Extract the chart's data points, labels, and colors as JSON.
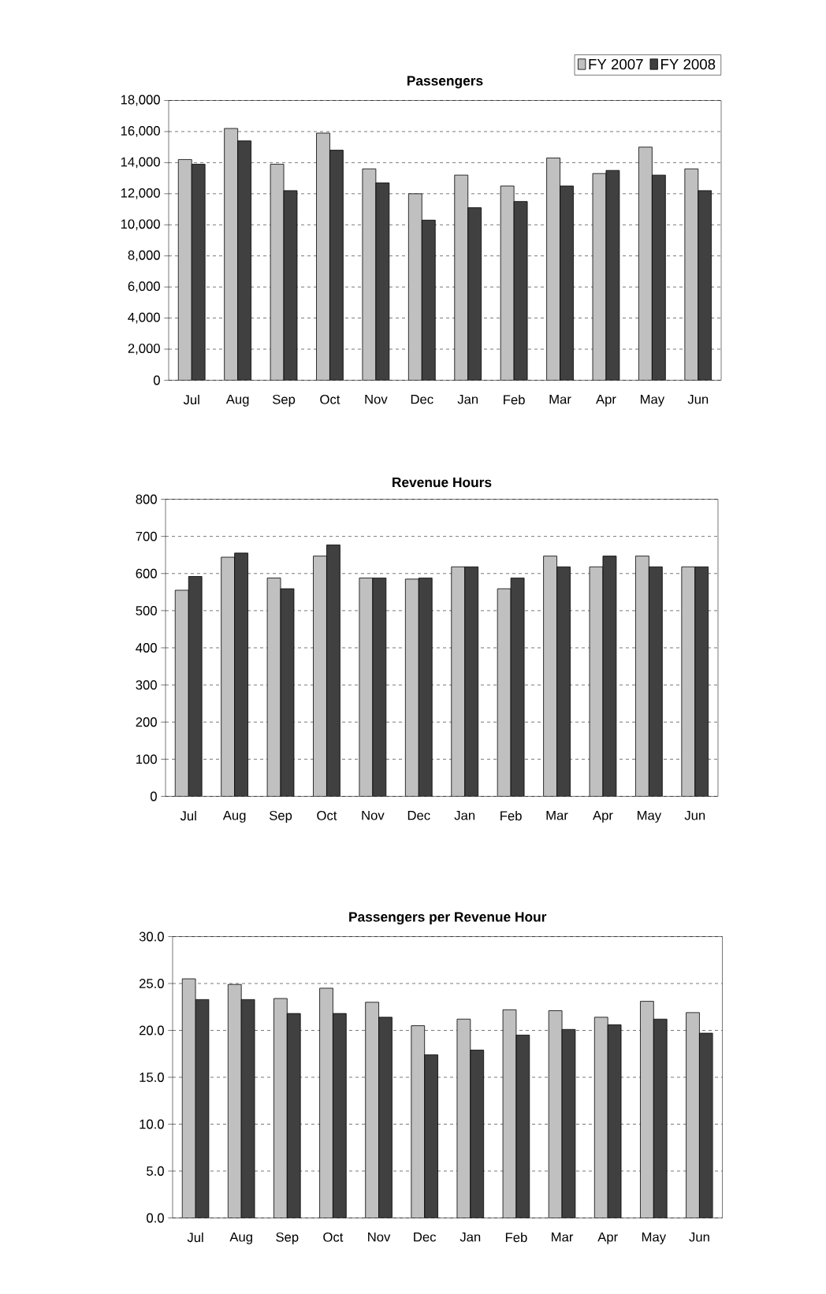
{
  "chart_data": [
    {
      "type": "bar",
      "title": "Passengers",
      "categories": [
        "Jul",
        "Aug",
        "Sep",
        "Oct",
        "Nov",
        "Dec",
        "Jan",
        "Feb",
        "Mar",
        "Apr",
        "May",
        "Jun"
      ],
      "series": [
        {
          "name": "FY 2007",
          "color": "#c0c0c0",
          "values": [
            14200,
            16200,
            13900,
            15900,
            13600,
            12000,
            13200,
            12500,
            14300,
            13300,
            15000,
            13600
          ]
        },
        {
          "name": "FY 2008",
          "color": "#404040",
          "values": [
            13900,
            15400,
            12200,
            14800,
            12700,
            10300,
            11100,
            11500,
            12500,
            13500,
            13200,
            12200
          ]
        }
      ],
      "ylim": [
        0,
        18000
      ],
      "yticks": [
        0,
        {
          "value": 2000,
          "label": "2,000"
        },
        {
          "value": 4000,
          "label": "4,000"
        },
        {
          "value": 6000,
          "label": "6,000"
        },
        {
          "value": 8000,
          "label": "8,000"
        },
        {
          "value": 10000,
          "label": "10,000"
        },
        {
          "value": 12000,
          "label": "12,000"
        },
        {
          "value": 14000,
          "label": "14,000"
        },
        {
          "value": 16000,
          "label": "16,000"
        },
        {
          "value": 18000,
          "label": "18,000"
        }
      ],
      "grid": "y",
      "legend": "top right"
    },
    {
      "type": "bar",
      "title": "Revenue Hours",
      "categories": [
        "Jul",
        "Aug",
        "Sep",
        "Oct",
        "Nov",
        "Dec",
        "Jan",
        "Feb",
        "Mar",
        "Apr",
        "May",
        "Jun"
      ],
      "series": [
        {
          "color": "#c0c0c0",
          "values": [
            555,
            644,
            588,
            647,
            588,
            585,
            618,
            559,
            647,
            618,
            647,
            618
          ]
        },
        {
          "color": "#404040",
          "values": [
            592,
            655,
            559,
            677,
            588,
            588,
            618,
            588,
            618,
            647,
            618,
            618
          ]
        }
      ],
      "ylim": [
        0,
        800
      ],
      "yticks": [
        0,
        100,
        200,
        300,
        400,
        500,
        600,
        700,
        800
      ],
      "grid": "y"
    },
    {
      "type": "bar",
      "title": "Passengers per Revenue Hour",
      "categories": [
        "Jul",
        "Aug",
        "Sep",
        "Oct",
        "Nov",
        "Dec",
        "Jan",
        "Feb",
        "Mar",
        "Apr",
        "May",
        "Jun"
      ],
      "series": [
        {
          "color": "#c0c0c0",
          "values": [
            25.5,
            24.9,
            23.4,
            24.5,
            23.0,
            20.5,
            21.2,
            22.2,
            22.1,
            21.4,
            23.1,
            21.9
          ]
        },
        {
          "color": "#404040",
          "values": [
            23.3,
            23.3,
            21.8,
            21.8,
            21.4,
            17.4,
            17.9,
            19.5,
            20.1,
            20.6,
            21.2,
            19.7
          ]
        }
      ],
      "ylim": [
        0,
        30
      ],
      "yticks": [
        {
          "value": 0,
          "label": "0.0"
        },
        {
          "value": 5,
          "label": "5.0"
        },
        {
          "value": 10,
          "label": "10.0"
        },
        {
          "value": 15,
          "label": "15.0"
        },
        {
          "value": 20,
          "label": "20.0"
        },
        {
          "value": 25,
          "label": "25.0"
        },
        {
          "value": 30,
          "label": "30.0"
        }
      ],
      "grid": "y"
    }
  ]
}
